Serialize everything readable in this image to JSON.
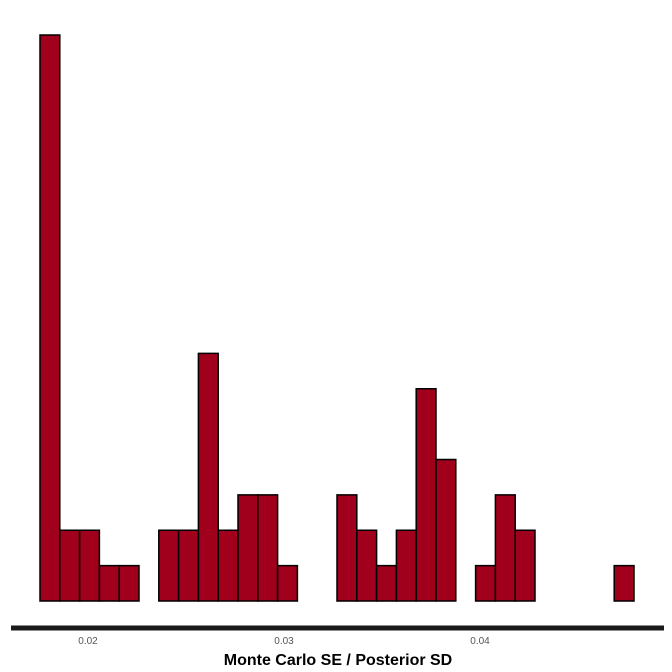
{
  "chart_data": {
    "type": "bar",
    "title": "",
    "xlabel": "Monte Carlo SE / Posterior SD",
    "ylabel": "",
    "xlim": [
      0.0171,
      0.0482
    ],
    "ylim": [
      0,
      16
    ],
    "bin_width": 0.001,
    "bins": [
      {
        "x0": 0.0176,
        "x1": 0.0186,
        "count": 16
      },
      {
        "x0": 0.0186,
        "x1": 0.0196,
        "count": 2
      },
      {
        "x0": 0.0196,
        "x1": 0.0206,
        "count": 2
      },
      {
        "x0": 0.0206,
        "x1": 0.0216,
        "count": 1
      },
      {
        "x0": 0.0216,
        "x1": 0.0226,
        "count": 1
      },
      {
        "x0": 0.0226,
        "x1": 0.0236,
        "count": 0
      },
      {
        "x0": 0.0236,
        "x1": 0.0246,
        "count": 2
      },
      {
        "x0": 0.0246,
        "x1": 0.0256,
        "count": 2
      },
      {
        "x0": 0.0256,
        "x1": 0.0266,
        "count": 7
      },
      {
        "x0": 0.0266,
        "x1": 0.0276,
        "count": 2
      },
      {
        "x0": 0.0276,
        "x1": 0.0286,
        "count": 3
      },
      {
        "x0": 0.0286,
        "x1": 0.0296,
        "count": 3
      },
      {
        "x0": 0.0296,
        "x1": 0.0306,
        "count": 1
      },
      {
        "x0": 0.0306,
        "x1": 0.0316,
        "count": 0
      },
      {
        "x0": 0.0316,
        "x1": 0.0326,
        "count": 0
      },
      {
        "x0": 0.0326,
        "x1": 0.0336,
        "count": 3
      },
      {
        "x0": 0.0336,
        "x1": 0.0346,
        "count": 2
      },
      {
        "x0": 0.0346,
        "x1": 0.0356,
        "count": 1
      },
      {
        "x0": 0.0356,
        "x1": 0.0366,
        "count": 2
      },
      {
        "x0": 0.0366,
        "x1": 0.0376,
        "count": 6
      },
      {
        "x0": 0.0376,
        "x1": 0.0386,
        "count": 4
      },
      {
        "x0": 0.0386,
        "x1": 0.0396,
        "count": 0
      },
      {
        "x0": 0.0396,
        "x1": 0.0406,
        "count": 1
      },
      {
        "x0": 0.0406,
        "x1": 0.0416,
        "count": 3
      },
      {
        "x0": 0.0416,
        "x1": 0.0426,
        "count": 2
      },
      {
        "x0": 0.0426,
        "x1": 0.0436,
        "count": 0
      },
      {
        "x0": 0.0436,
        "x1": 0.0446,
        "count": 0
      },
      {
        "x0": 0.0446,
        "x1": 0.0456,
        "count": 0
      },
      {
        "x0": 0.0456,
        "x1": 0.0466,
        "count": 0
      },
      {
        "x0": 0.0466,
        "x1": 0.0476,
        "count": 1
      }
    ],
    "x_ticks": [
      {
        "value": 0.02,
        "label": "0.02"
      },
      {
        "value": 0.03,
        "label": "0.03"
      },
      {
        "value": 0.04,
        "label": "0.04"
      }
    ],
    "grid": false,
    "legend": "none",
    "colors": {
      "bar_fill": "#A0001C",
      "bar_stroke": "#000000",
      "axis_line": "#1a1a1a",
      "tick_label": "#555555"
    }
  }
}
